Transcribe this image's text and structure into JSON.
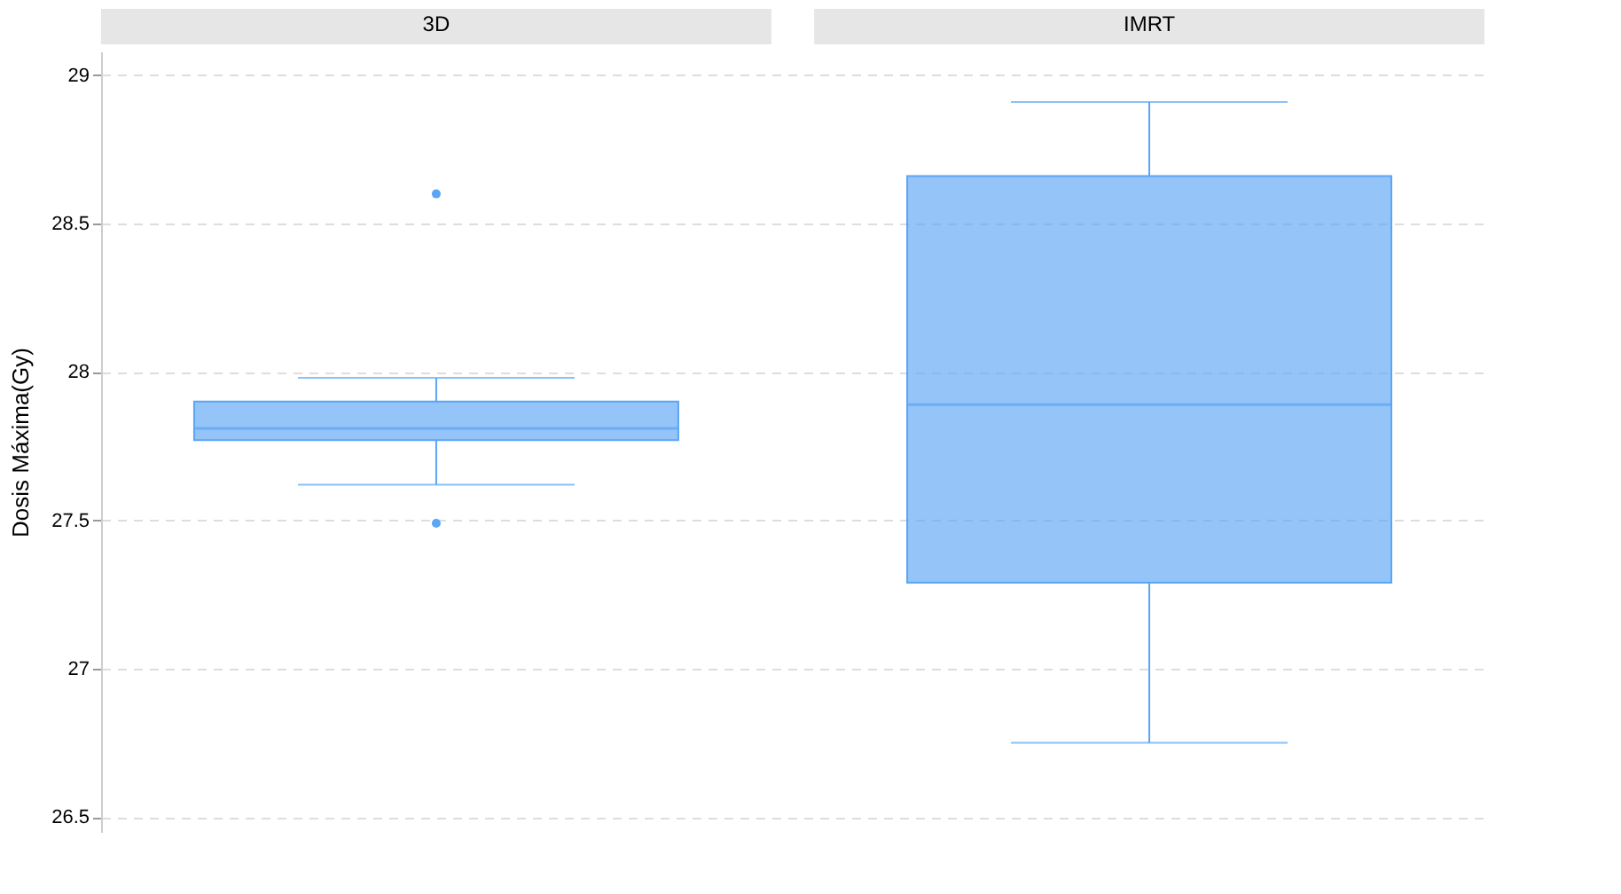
{
  "chart_data": {
    "type": "box",
    "ylabel": "Dosis Máxima(Gy)",
    "categories": [
      "3D",
      "IMRT"
    ],
    "ylim": [
      26.45,
      29.08
    ],
    "yticks": [
      26.5,
      27,
      27.5,
      28,
      28.5,
      29
    ],
    "grid": "y",
    "series": [
      {
        "color": "#5aa5f5",
        "boxes": [
          {
            "low": 27.62,
            "q1": 27.77,
            "median": 27.81,
            "q3": 27.9,
            "high": 27.98,
            "outliers": [
              28.6,
              27.49
            ]
          },
          {
            "low": 26.75,
            "q1": 27.29,
            "median": 27.89,
            "q3": 28.66,
            "high": 28.91
          }
        ]
      }
    ]
  }
}
